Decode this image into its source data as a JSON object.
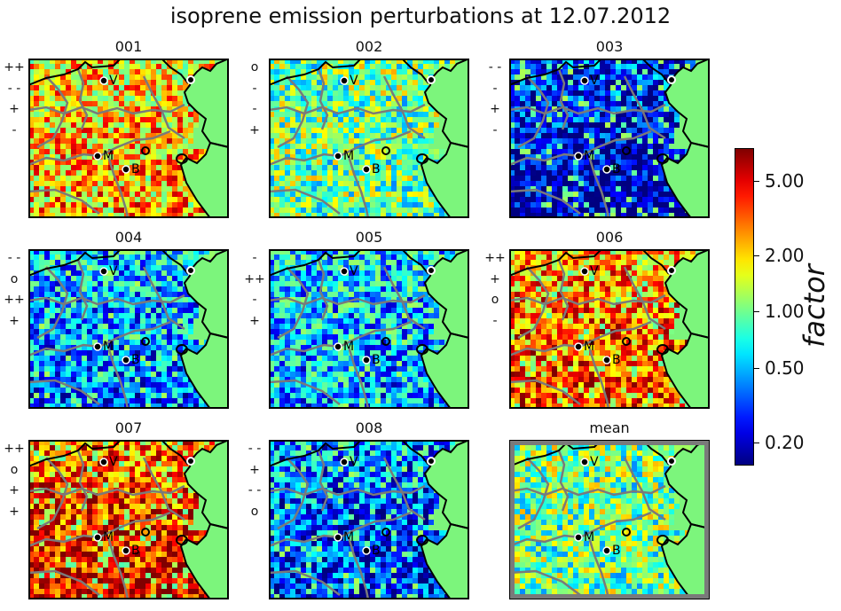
{
  "title": "isoprene emission perturbations at 12.07.2012",
  "chart_data": {
    "type": "heatmap",
    "colormap": "jet",
    "land_color": "#7cf57c",
    "colorbar": {
      "scale": "log",
      "label": "factor",
      "range": [
        0.15,
        7.5
      ],
      "ticks": [
        "0.20",
        "0.50",
        "1.00",
        "2.00",
        "5.00"
      ],
      "tick_values": [
        0.2,
        0.5,
        1.0,
        2.0,
        5.0
      ]
    },
    "cities": [
      "V",
      "M",
      "B"
    ],
    "panels": [
      {
        "name": "001",
        "labels": [
          "++",
          "- -",
          "+",
          "-"
        ],
        "mean_factor": 2.0
      },
      {
        "name": "002",
        "labels": [
          "o",
          "-",
          "-",
          "+"
        ],
        "mean_factor": 1.0
      },
      {
        "name": "003",
        "labels": [
          "- -",
          "-",
          "+",
          "-"
        ],
        "mean_factor": 0.3
      },
      {
        "name": "004",
        "labels": [
          "- -",
          "o",
          "++",
          "+"
        ],
        "mean_factor": 0.5
      },
      {
        "name": "005",
        "labels": [
          "-",
          "++",
          "-",
          "+"
        ],
        "mean_factor": 0.55
      },
      {
        "name": "006",
        "labels": [
          "++",
          "+",
          "o",
          "-"
        ],
        "mean_factor": 2.5
      },
      {
        "name": "007",
        "labels": [
          "++",
          "o",
          "+",
          "+"
        ],
        "mean_factor": 3.0
      },
      {
        "name": "008",
        "labels": [
          "- -",
          "+",
          "- -",
          "o"
        ],
        "mean_factor": 0.4
      },
      {
        "name": "mean",
        "labels": [],
        "mean_factor": 1.0
      }
    ]
  }
}
